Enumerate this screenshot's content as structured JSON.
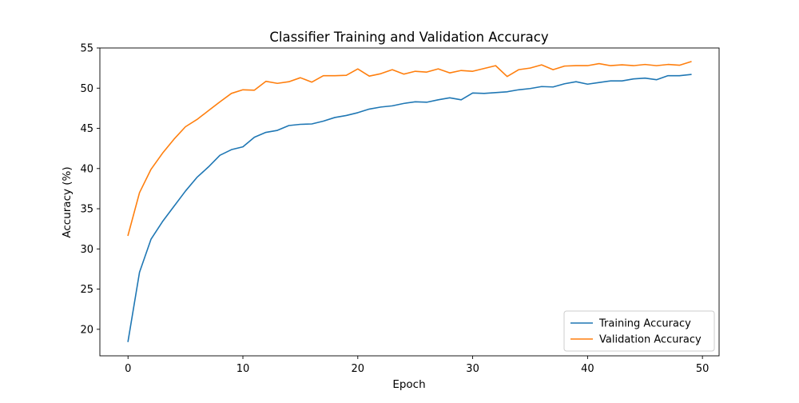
{
  "chart_data": {
    "type": "line",
    "title": "Classifier Training and Validation Accuracy",
    "xlabel": "Epoch",
    "ylabel": "Accuracy (%)",
    "xlim": [
      -2.45,
      51.45
    ],
    "ylim": [
      16.7,
      55
    ],
    "xticks": [
      0,
      10,
      20,
      30,
      40,
      50
    ],
    "yticks": [
      20,
      25,
      30,
      35,
      40,
      45,
      50,
      55
    ],
    "grid": false,
    "legend_position": "lower-right",
    "x": [
      0,
      1,
      2,
      3,
      4,
      5,
      6,
      7,
      8,
      9,
      10,
      11,
      12,
      13,
      14,
      15,
      16,
      17,
      18,
      19,
      20,
      21,
      22,
      23,
      24,
      25,
      26,
      27,
      28,
      29,
      30,
      31,
      32,
      33,
      34,
      35,
      36,
      37,
      38,
      39,
      40,
      41,
      42,
      43,
      44,
      45,
      46,
      47,
      48,
      49
    ],
    "series": [
      {
        "name": "Training Accuracy",
        "color": "#1f77b4",
        "values": [
          18.5,
          27.1,
          31.2,
          33.4,
          35.3,
          37.2,
          38.9,
          40.2,
          41.65,
          42.35,
          42.7,
          43.9,
          44.5,
          44.75,
          45.35,
          45.5,
          45.55,
          45.9,
          46.35,
          46.6,
          46.95,
          47.4,
          47.65,
          47.8,
          48.1,
          48.3,
          48.25,
          48.55,
          48.8,
          48.55,
          49.4,
          49.35,
          49.45,
          49.55,
          49.8,
          49.95,
          50.2,
          50.15,
          50.55,
          50.8,
          50.5,
          50.7,
          50.9,
          50.9,
          51.15,
          51.25,
          51.05,
          51.55,
          51.55,
          51.7
        ]
      },
      {
        "name": "Validation Accuracy",
        "color": "#ff7f0e",
        "values": [
          31.7,
          37.0,
          39.9,
          41.9,
          43.65,
          45.2,
          46.1,
          47.2,
          48.3,
          49.35,
          49.8,
          49.75,
          50.85,
          50.6,
          50.8,
          51.3,
          50.75,
          51.55,
          51.55,
          51.6,
          52.4,
          51.5,
          51.8,
          52.3,
          51.75,
          52.1,
          52.0,
          52.4,
          51.9,
          52.2,
          52.1,
          52.45,
          52.8,
          51.45,
          52.3,
          52.5,
          52.9,
          52.3,
          52.75,
          52.8,
          52.8,
          53.05,
          52.8,
          52.9,
          52.8,
          52.95,
          52.8,
          52.95,
          52.85,
          53.3
        ]
      }
    ]
  }
}
